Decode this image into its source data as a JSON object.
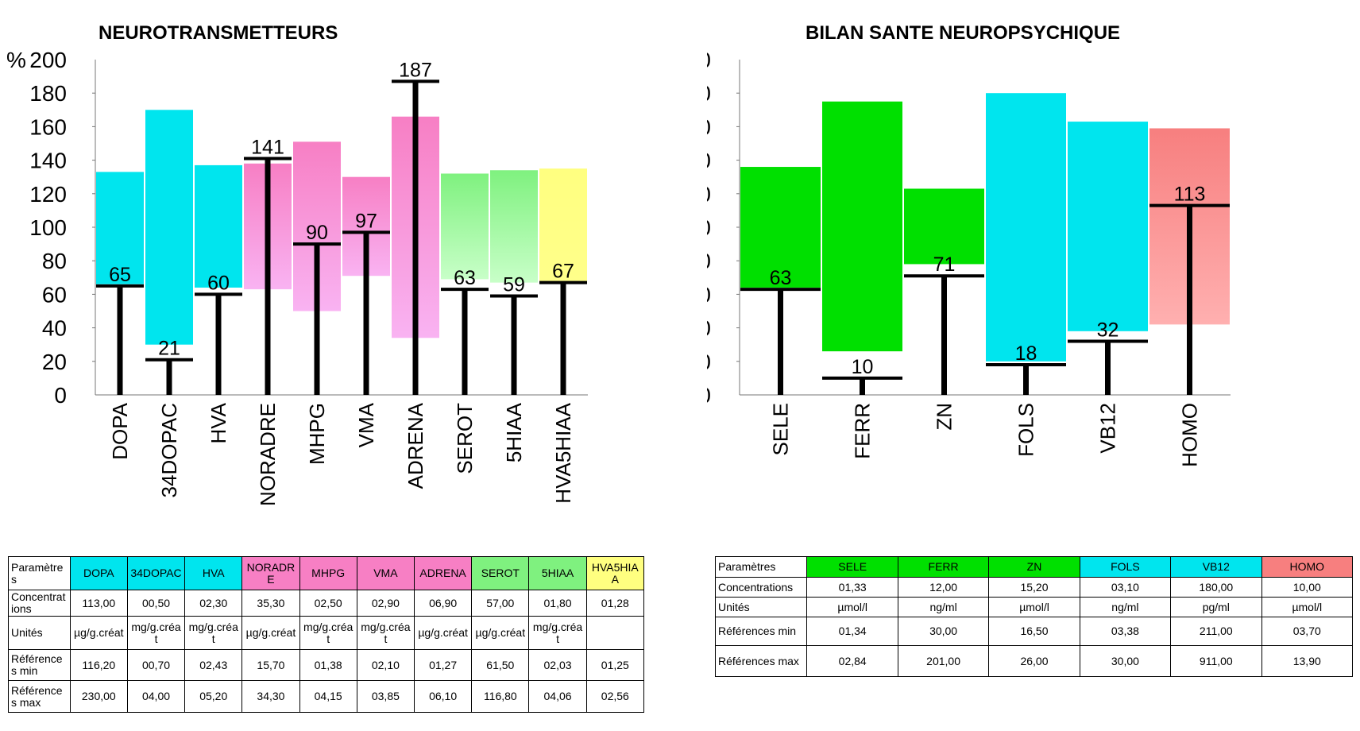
{
  "chart_data": [
    {
      "type": "bar",
      "title": "NEUROTRANSMETTEURS",
      "ylabel": "%",
      "ylim": [
        0,
        200
      ],
      "yticks": [
        0,
        20,
        40,
        60,
        80,
        100,
        120,
        140,
        160,
        180,
        200
      ],
      "categories": [
        "DOPA",
        "34DOPAC",
        "HVA",
        "NORADRE",
        "MHPG",
        "VMA",
        "ADRENA",
        "SEROT",
        "5HIAA",
        "HVA5HIAA"
      ],
      "values": [
        65,
        21,
        60,
        141,
        90,
        97,
        187,
        63,
        59,
        67
      ],
      "range_low": [
        66,
        30,
        64,
        63,
        50,
        71,
        34,
        69,
        67,
        67
      ],
      "range_high": [
        133,
        170,
        137,
        138,
        151,
        130,
        166,
        132,
        134,
        135
      ],
      "colors": [
        "#00e5ee",
        "#00e5ee",
        "#00e5ee",
        "#f77fc4",
        "#f77fc4",
        "#f77fc4",
        "#f77fc4",
        "#7ff17f",
        "#7ff17f",
        "#ffff80"
      ],
      "gradient_colors": [
        "#00e5ee",
        "#00e5ee",
        "#00e5ee",
        "#f9b3f2",
        "#f9b3f2",
        "#f9b3f2",
        "#f9b3f2",
        "#c8ffc8",
        "#c8ffc8",
        "#ffff8a"
      ]
    },
    {
      "type": "bar",
      "title": "BILAN SANTE NEUROPSYCHIQUE",
      "ylabel": "%",
      "ylim": [
        0,
        200
      ],
      "yticks": [
        0,
        20,
        40,
        60,
        80,
        100,
        120,
        140,
        160,
        180,
        200
      ],
      "categories": [
        "SELE",
        "FERR",
        "ZN",
        "FOLS",
        "VB12",
        "HOMO"
      ],
      "values": [
        63,
        10,
        71,
        18,
        32,
        113
      ],
      "range_low": [
        64,
        26,
        78,
        20,
        38,
        42
      ],
      "range_high": [
        136,
        175,
        123,
        180,
        163,
        159
      ],
      "colors": [
        "#00e000",
        "#00e000",
        "#00e000",
        "#00e5ee",
        "#00e5ee",
        "#f77f7f"
      ],
      "gradient_colors": [
        "#00e000",
        "#00e000",
        "#00e000",
        "#00e5ee",
        "#00e5ee",
        "#ffb0b0"
      ]
    }
  ],
  "table_left": {
    "header_label": "Paramètres",
    "columns": [
      "DOPA",
      "34DOPAC",
      "HVA",
      "NORADRE",
      "MHPG",
      "VMA",
      "ADRENA",
      "SEROT",
      "5HIAA",
      "HVA5HIAA"
    ],
    "header_colors": [
      "#00e5ee",
      "#00e5ee",
      "#00e5ee",
      "#f77fc4",
      "#f77fc4",
      "#f77fc4",
      "#f77fc4",
      "#7ff17f",
      "#7ff17f",
      "#ffff80"
    ],
    "rows": [
      {
        "label": "Concentrations",
        "values": [
          "113,00",
          "00,50",
          "02,30",
          "35,30",
          "02,50",
          "02,90",
          "06,90",
          "57,00",
          "01,80",
          "01,28"
        ]
      },
      {
        "label": "Unités",
        "values": [
          "µg/g.créat",
          "mg/g.créat",
          "mg/g.créat",
          "µg/g.créat",
          "mg/g.créat",
          "mg/g.créat",
          "µg/g.créat",
          "µg/g.créat",
          "mg/g.créat",
          ""
        ]
      },
      {
        "label": "Références min",
        "values": [
          "116,20",
          "00,70",
          "02,43",
          "15,70",
          "01,38",
          "02,10",
          "01,27",
          "61,50",
          "02,03",
          "01,25"
        ]
      },
      {
        "label": "Références max",
        "values": [
          "230,00",
          "04,00",
          "05,20",
          "34,30",
          "04,15",
          "03,85",
          "06,10",
          "116,80",
          "04,06",
          "02,56"
        ]
      }
    ]
  },
  "table_right": {
    "header_label": "Paramètres",
    "columns": [
      "SELE",
      "FERR",
      "ZN",
      "FOLS",
      "VB12",
      "HOMO"
    ],
    "header_colors": [
      "#00e000",
      "#00e000",
      "#00e000",
      "#00e5ee",
      "#00e5ee",
      "#f77f7f"
    ],
    "rows": [
      {
        "label": "Concentrations",
        "values": [
          "01,33",
          "12,00",
          "15,20",
          "03,10",
          "180,00",
          "10,00"
        ]
      },
      {
        "label": "Unités",
        "values": [
          "µmol/l",
          "ng/ml",
          "µmol/l",
          "ng/ml",
          "pg/ml",
          "µmol/l"
        ]
      },
      {
        "label": "Références min",
        "values": [
          "01,34",
          "30,00",
          "16,50",
          "03,38",
          "211,00",
          "03,70"
        ]
      },
      {
        "label": "Références max",
        "values": [
          "02,84",
          "201,00",
          "26,00",
          "30,00",
          "911,00",
          "13,90"
        ]
      }
    ]
  }
}
